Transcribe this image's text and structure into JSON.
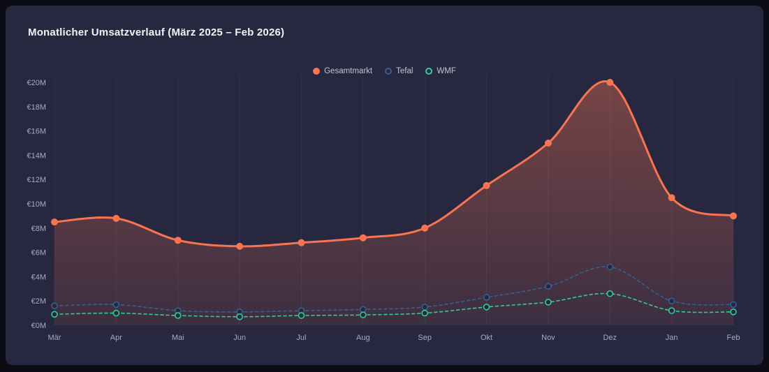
{
  "chart_data": {
    "type": "line",
    "title": "Monatlicher Umsatzverlauf (März 2025 – Feb 2026)",
    "categories": [
      "Mär",
      "Apr",
      "Mai",
      "Jun",
      "Jul",
      "Aug",
      "Sep",
      "Okt",
      "Nov",
      "Dez",
      "Jan",
      "Feb"
    ],
    "y_ticks": [
      "€0M",
      "€2M",
      "€4M",
      "€6M",
      "€8M",
      "€10M",
      "€12M",
      "€14M",
      "€16M",
      "€18M",
      "€20M"
    ],
    "ylim": [
      0,
      20
    ],
    "xlabel": "",
    "ylabel": "",
    "grid": "vertical-faint",
    "legend_position": "top-center",
    "series": [
      {
        "name": "Gesamtmarkt",
        "color": "#f9744f",
        "style": "solid",
        "fill": true,
        "marker": "filled",
        "values": [
          8.5,
          8.8,
          7.0,
          6.5,
          6.8,
          7.2,
          8.0,
          11.5,
          15.0,
          20.0,
          10.5,
          9.0
        ]
      },
      {
        "name": "Tefal",
        "color": "#35608f",
        "style": "dashed",
        "fill": false,
        "marker": "hollow",
        "values": [
          1.6,
          1.7,
          1.2,
          1.1,
          1.2,
          1.3,
          1.5,
          2.3,
          3.2,
          4.8,
          2.0,
          1.7
        ]
      },
      {
        "name": "WMF",
        "color": "#2ecf94",
        "style": "dashed",
        "fill": false,
        "marker": "hollow",
        "values": [
          0.9,
          1.0,
          0.8,
          0.7,
          0.8,
          0.85,
          1.0,
          1.5,
          1.9,
          2.6,
          1.2,
          1.1
        ]
      }
    ],
    "colors": {
      "card_background": "#272740",
      "page_background": "#0c0c15",
      "axis_text": "#a9a9c2",
      "title_text": "#f2f2f7",
      "gridline": "rgba(255,255,255,0.05)"
    }
  }
}
